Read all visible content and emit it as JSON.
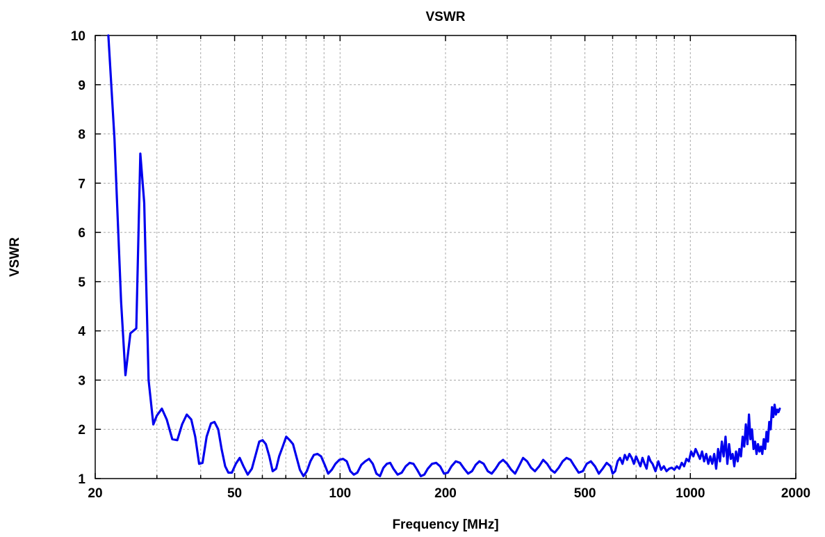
{
  "chart_data": {
    "type": "line",
    "title": "VSWR",
    "xlabel": "Frequency [MHz]",
    "ylabel": "VSWR",
    "x_scale": "log",
    "xlim": [
      20,
      2000
    ],
    "ylim": [
      1,
      10
    ],
    "x_ticks": [
      20,
      50,
      100,
      200,
      500,
      1000,
      2000
    ],
    "x_tick_labels": [
      "20",
      "50",
      "100",
      "200",
      "500",
      "1000",
      "2000"
    ],
    "y_ticks": [
      1,
      2,
      3,
      4,
      5,
      6,
      7,
      8,
      9,
      10
    ],
    "y_tick_labels": [
      "1",
      "2",
      "3",
      "4",
      "5",
      "6",
      "7",
      "8",
      "9",
      "10"
    ],
    "x_minor_grid": [
      30,
      40,
      60,
      70,
      80,
      90,
      300,
      400,
      600,
      700,
      800,
      900
    ],
    "grid": true,
    "line_color": "#0000ee",
    "series": [
      {
        "x": [
          21.8,
          22.7,
          23.7,
          24.4,
          25.2,
          26.2,
          26.9,
          27.6,
          28.4,
          29.3,
          30.0,
          31.0,
          32.0,
          33.2,
          34.3,
          35.4,
          36.5,
          37.6,
          38.6,
          39.6,
          40.5,
          41.6,
          42.8,
          43.8,
          44.9,
          45.9,
          47.0,
          48.0,
          49.1,
          50.4,
          51.7,
          53.0,
          54.5,
          56.0,
          57.4,
          58.8,
          60.1,
          61.4,
          62.8,
          64.2,
          65.7,
          67.0,
          68.6,
          70.2,
          71.8,
          73.4,
          75.0,
          76.8,
          78.6,
          80.4,
          82.3,
          84.2,
          86.2,
          88.3,
          90.4,
          92.5,
          94.7,
          97.0,
          99.5,
          102.0,
          104.5,
          107.0,
          109.5,
          112.0,
          115.0,
          118.0,
          121.0,
          124.0,
          127.0,
          130.0,
          133.0,
          136.0,
          139.0,
          142.0,
          146.0,
          150.0,
          154.0,
          158.0,
          162.0,
          166.0,
          170.0,
          174.0,
          178.0,
          183.0,
          188.0,
          193.0,
          198.0,
          203.0,
          208.0,
          214.0,
          220.0,
          226.0,
          232.0,
          238.0,
          244.0,
          250.0,
          257.0,
          264.0,
          271.0,
          278.0,
          285.0,
          292.0,
          300.0,
          308.0,
          316.0,
          324.0,
          333.0,
          342.0,
          351.0,
          360.0,
          370.0,
          380.0,
          390.0,
          400.0,
          410.0,
          421.0,
          432.0,
          443.0,
          455.0,
          467.0,
          480.0,
          493.0,
          506.0,
          520.0,
          534.0,
          548.0,
          562.0,
          577.0,
          592.0,
          600.0,
          610.0,
          620.0,
          630.0,
          640.0,
          650.0,
          660.0,
          670.0,
          680.0,
          690.0,
          700.0,
          710.0,
          720.0,
          730.0,
          740.0,
          750.0,
          760.0,
          770.0,
          780.0,
          795.0,
          810.0,
          825.0,
          840.0,
          855.0,
          870.0,
          885.0,
          900.0,
          915.0,
          930.0,
          945.0,
          960.0,
          975.0,
          990.0,
          1005.0,
          1020.0,
          1035.0,
          1050.0,
          1065.0,
          1080.0,
          1095.0,
          1110.0,
          1125.0,
          1140.0,
          1155.0,
          1170.0,
          1185.0,
          1200.0,
          1215.0,
          1230.0,
          1245.0,
          1260.0,
          1275.0,
          1290.0,
          1305.0,
          1320.0,
          1335.0,
          1350.0,
          1365.0,
          1380.0,
          1395.0,
          1410.0,
          1425.0,
          1440.0,
          1455.0,
          1470.0,
          1485.0,
          1500.0,
          1515.0,
          1530.0,
          1545.0,
          1560.0,
          1575.0,
          1590.0,
          1605.0,
          1620.0,
          1635.0,
          1650.0,
          1665.0,
          1680.0,
          1695.0,
          1710.0,
          1725.0,
          1740.0,
          1755.0,
          1770.0,
          1785.0,
          1800.0
        ],
        "y": [
          10.0,
          7.9,
          4.6,
          3.1,
          3.95,
          4.05,
          7.6,
          6.6,
          3.0,
          2.1,
          2.28,
          2.42,
          2.2,
          1.8,
          1.78,
          2.1,
          2.3,
          2.2,
          1.85,
          1.3,
          1.32,
          1.85,
          2.12,
          2.15,
          2.0,
          1.6,
          1.25,
          1.12,
          1.12,
          1.3,
          1.42,
          1.25,
          1.08,
          1.2,
          1.48,
          1.75,
          1.78,
          1.7,
          1.45,
          1.15,
          1.2,
          1.45,
          1.65,
          1.85,
          1.78,
          1.7,
          1.45,
          1.18,
          1.05,
          1.15,
          1.35,
          1.48,
          1.5,
          1.45,
          1.28,
          1.1,
          1.18,
          1.3,
          1.38,
          1.4,
          1.35,
          1.15,
          1.08,
          1.12,
          1.28,
          1.35,
          1.4,
          1.3,
          1.1,
          1.05,
          1.22,
          1.3,
          1.32,
          1.2,
          1.08,
          1.12,
          1.25,
          1.32,
          1.3,
          1.18,
          1.05,
          1.08,
          1.2,
          1.3,
          1.32,
          1.25,
          1.1,
          1.12,
          1.25,
          1.35,
          1.32,
          1.2,
          1.1,
          1.15,
          1.28,
          1.35,
          1.3,
          1.15,
          1.1,
          1.2,
          1.32,
          1.38,
          1.3,
          1.18,
          1.1,
          1.25,
          1.42,
          1.35,
          1.22,
          1.15,
          1.25,
          1.38,
          1.3,
          1.18,
          1.12,
          1.22,
          1.35,
          1.42,
          1.38,
          1.25,
          1.12,
          1.15,
          1.3,
          1.35,
          1.25,
          1.1,
          1.2,
          1.32,
          1.25,
          1.1,
          1.15,
          1.35,
          1.42,
          1.3,
          1.48,
          1.38,
          1.5,
          1.42,
          1.3,
          1.45,
          1.35,
          1.25,
          1.42,
          1.3,
          1.2,
          1.45,
          1.35,
          1.3,
          1.15,
          1.35,
          1.18,
          1.25,
          1.15,
          1.2,
          1.22,
          1.18,
          1.25,
          1.2,
          1.32,
          1.25,
          1.4,
          1.35,
          1.55,
          1.45,
          1.6,
          1.5,
          1.4,
          1.55,
          1.35,
          1.5,
          1.3,
          1.45,
          1.3,
          1.5,
          1.2,
          1.6,
          1.35,
          1.75,
          1.45,
          1.85,
          1.3,
          1.7,
          1.4,
          1.5,
          1.25,
          1.55,
          1.35,
          1.6,
          1.45,
          1.85,
          1.65,
          2.1,
          1.7,
          2.3,
          1.8,
          2.0,
          1.6,
          1.75,
          1.5,
          1.7,
          1.55,
          1.65,
          1.5,
          1.8,
          1.6,
          1.95,
          1.75,
          2.15,
          2.0,
          2.45,
          2.25,
          2.5,
          2.3,
          2.4,
          2.35,
          2.42
        ]
      }
    ]
  }
}
